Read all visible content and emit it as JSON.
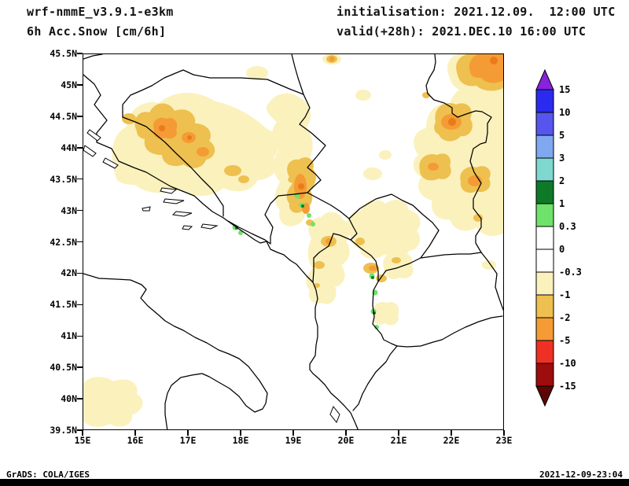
{
  "header": {
    "model_line": "wrf-nmmE_v3.9.1-e3km",
    "variable_line": "6h Acc.Snow [cm/6h]",
    "init_line": "initialisation: 2021.12.09.  12:00 UTC",
    "valid_line": "valid(+28h): 2021.DEC.10 16:00 UTC"
  },
  "axes": {
    "lat_ticks": [
      "45.5N",
      "45N",
      "44.5N",
      "44N",
      "43.5N",
      "43N",
      "42.5N",
      "42N",
      "41.5N",
      "41N",
      "40.5N",
      "40N",
      "39.5N"
    ],
    "lon_ticks": [
      "15E",
      "16E",
      "17E",
      "18E",
      "19E",
      "20E",
      "21E",
      "22E",
      "23E"
    ]
  },
  "colorbar": {
    "levels": [
      "15",
      "10",
      "5",
      "3",
      "2",
      "1",
      "0.3",
      "0",
      "-0.3",
      "-1",
      "-2",
      "-5",
      "-10",
      "-15"
    ],
    "arrow_top_color": "#8822dd",
    "segment_colors": [
      "#2b2bf0",
      "#5656ee",
      "#7fa8f0",
      "#7fd8d0",
      "#0e7a28",
      "#6ee26a",
      "#ffffff",
      "#ffffff",
      "#faf1bd",
      "#eec04f",
      "#f59b35",
      "#ef3125",
      "#9e0c0c"
    ],
    "arrow_bottom_color": "#5c0606"
  },
  "footer": {
    "left": "GrADS: COLA/IGES",
    "right": "2021-12-09-23:04"
  },
  "chart_data": {
    "type": "heatmap",
    "title": "6h Acc.Snow [cm/6h]",
    "model": "wrf-nmmE_v3.9.1-e3km",
    "initialisation": "2021.12.09. 12:00 UTC",
    "valid": "+28h 2021.DEC.10 16:00 UTC",
    "projection": "lat-lon map of Adriatic / Western Balkans",
    "lon_range": [
      15,
      23
    ],
    "lat_range": [
      39.5,
      45.5
    ],
    "units": "cm/6h",
    "colorbar_levels": [
      15,
      10,
      5,
      3,
      2,
      1,
      0.3,
      0,
      -0.3,
      -1,
      -2,
      -5,
      -10,
      -15
    ],
    "colorbar_colors_top_to_bottom": [
      "#8822dd",
      "#2b2bf0",
      "#5656ee",
      "#7fa8f0",
      "#7fd8d0",
      "#0e7a28",
      "#6ee26a",
      "#ffffff",
      "#ffffff",
      "#faf1bd",
      "#eec04f",
      "#f59b35",
      "#ef3125",
      "#9e0c0c",
      "#5c0606"
    ],
    "map_colors": {
      "cream": "#faf1bd",
      "gold": "#eec04f",
      "orange": "#f59b35",
      "deep": "#e97c18",
      "green": "#6ee26a",
      "dkgreen": "#0e7a28"
    },
    "shaded_regions": [
      {
        "area": "NW Bosnia / Dinaric Alps band (16-17.6E, 43.7-44.6N)",
        "value_band": "-1 to -5 (gold band with orange cores)"
      },
      {
        "area": "Drina valley band (18.8-19.3E, 42.9-43.6N)",
        "value_band": "-1 to -5 with embedded green maxima dots"
      },
      {
        "area": "Eastern Serbia (21.2-23E, 42.7-44.7N)",
        "value_band": "-0.3 to -5 patches with orange cores"
      },
      {
        "area": "Top-right corner (22.3-23E, 45.0-45.5N)",
        "value_band": "-2 to -5 orange maximum"
      },
      {
        "area": "Kosovo / Sar mountains (20.3-21E, 41.4-42.3N)",
        "value_band": "-0.3 to -2 with green dots"
      },
      {
        "area": "Montenegro / N Albania (19.4-20.1E, 41.3-42.6N)",
        "value_band": "-0.3 to -2"
      },
      {
        "area": "SE Italy heel / bottom-left corner (15-16.2E, 39.6-40.3N)",
        "value_band": "-0.3 to -1 pale"
      },
      {
        "area": "Scattered bright/dark green specks (local maxima)",
        "value_band": "0.3 to 2"
      }
    ]
  }
}
